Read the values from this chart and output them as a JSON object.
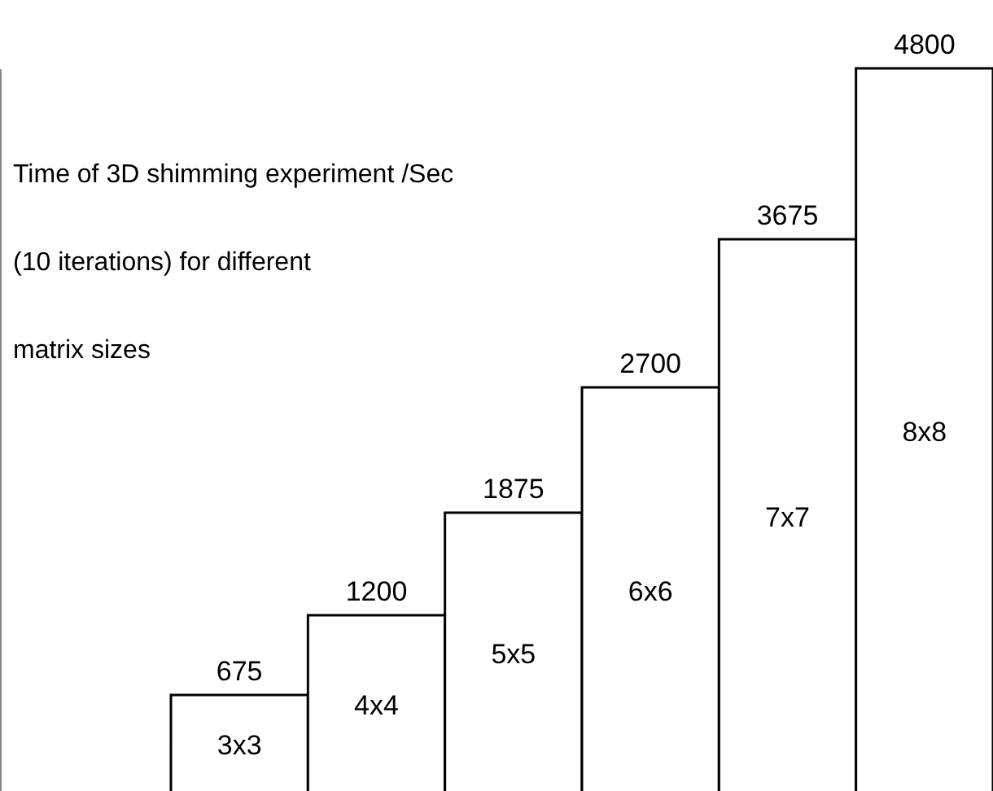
{
  "chart_data": {
    "type": "bar",
    "title": "Time of 3D shimming experiment /Sec\n(10 iterations) for different\nmatrix sizes",
    "categories": [
      "3x3",
      "4x4",
      "5x5",
      "6x6",
      "7x7",
      "8x8"
    ],
    "values": [
      675,
      1200,
      1875,
      2700,
      3675,
      4800
    ],
    "color": "#ffffff",
    "data_labels": true,
    "grid": false
  }
}
